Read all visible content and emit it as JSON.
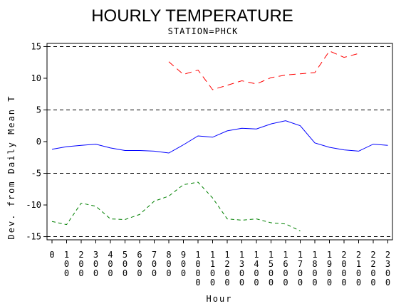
{
  "chart_data": {
    "type": "line",
    "title": "HOURLY TEMPERATURE",
    "subtitle": "STATION=PHCK",
    "xlabel": "Hour",
    "ylabel": "Dev. from Daily Mean T",
    "ylim": [
      -15.5,
      15.5
    ],
    "yticks": [
      -15,
      -10,
      -5,
      0,
      5,
      10,
      15
    ],
    "ytick_labels": [
      "-15",
      "-10",
      "-5",
      "0",
      "5",
      "10",
      "15"
    ],
    "categories": [
      "0",
      "100",
      "200",
      "300",
      "400",
      "500",
      "600",
      "700",
      "800",
      "900",
      "1000",
      "1100",
      "1200",
      "1300",
      "1400",
      "1500",
      "1600",
      "1700",
      "1800",
      "1900",
      "2000",
      "2100",
      "2200",
      "2300"
    ],
    "reference_lines": [
      -15,
      -5,
      5,
      15
    ],
    "series": [
      {
        "color": "#ff0000",
        "dash": "9,6",
        "values": [
          null,
          null,
          null,
          null,
          null,
          null,
          null,
          null,
          12.6,
          10.6,
          11.3,
          8.2,
          8.9,
          9.6,
          9.1,
          10.1,
          10.5,
          10.7,
          10.9,
          14.3,
          13.3,
          13.9,
          null,
          null
        ]
      },
      {
        "color": "#0000ff",
        "dash": "",
        "values": [
          -1.2,
          -0.8,
          -0.6,
          -0.4,
          -1.0,
          -1.4,
          -1.4,
          -1.5,
          -1.8,
          -0.5,
          0.9,
          0.7,
          1.7,
          2.1,
          2.0,
          2.8,
          3.3,
          2.5,
          -0.2,
          -0.9,
          -1.3,
          -1.5,
          -0.4,
          -0.6
        ]
      },
      {
        "color": "#008000",
        "dash": "5,4",
        "values": [
          -12.6,
          -13.1,
          -9.7,
          -10.2,
          -12.2,
          -12.3,
          -11.5,
          -9.4,
          -8.6,
          -6.8,
          -6.4,
          -8.9,
          -12.2,
          -12.4,
          -12.2,
          -12.8,
          -13.0,
          -14.1,
          null,
          null,
          null,
          null,
          null,
          null
        ]
      }
    ],
    "grid": false,
    "legend": "none"
  }
}
